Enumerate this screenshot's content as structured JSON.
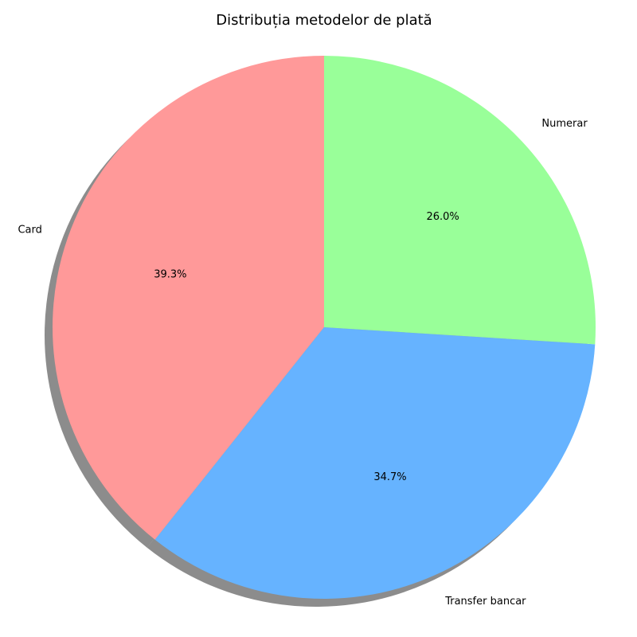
{
  "chart_data": {
    "type": "pie",
    "title": "Distribuția metodelor de plată",
    "start_angle_deg": 90,
    "direction": "counterclockwise",
    "shadow": true,
    "legend": "none",
    "slices": [
      {
        "label": "Card",
        "percent": 39.3,
        "percent_label": "39.3%",
        "color": "#ff9999"
      },
      {
        "label": "Transfer bancar",
        "percent": 34.7,
        "percent_label": "34.7%",
        "color": "#66b3ff"
      },
      {
        "label": "Numerar",
        "percent": 26.0,
        "percent_label": "26.0%",
        "color": "#99ff99"
      }
    ]
  }
}
